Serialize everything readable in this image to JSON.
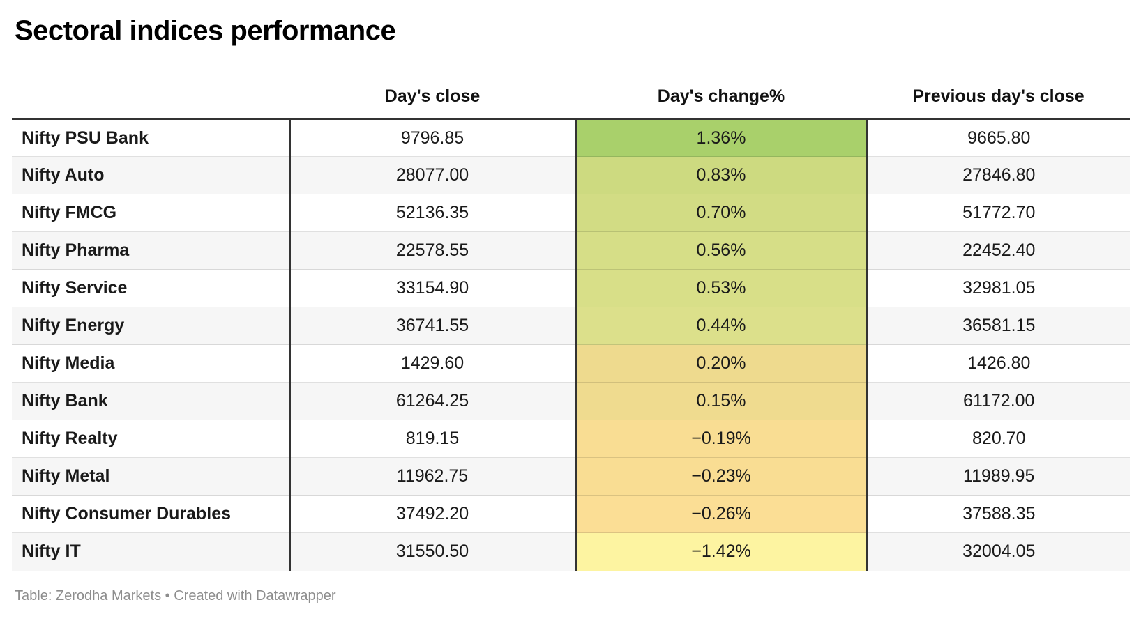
{
  "title": "Sectoral indices performance",
  "footer": "Table: Zerodha Markets • Created with Datawrapper",
  "colors": {
    "table_border": "#333333",
    "row_stripe": "#f6f6f6",
    "footer_text": "#8d8d8d",
    "max_positive_green": "#a9d06b",
    "min_negative_yellow": "#fdf4a1"
  },
  "chart_data": {
    "type": "table",
    "title": "Sectoral indices performance",
    "columns": [
      "",
      "Day's close",
      "Day's change%",
      "Previous day's close"
    ],
    "legend_note": "Day's change% cells are shaded on a green-to-yellow scale from highest to lowest change",
    "rows": [
      {
        "label": "Nifty PSU Bank",
        "close": "9796.85",
        "change": "1.36%",
        "change_value": 1.36,
        "change_color": "#a9d06b",
        "prev": "9665.80"
      },
      {
        "label": "Nifty Auto",
        "close": "28077.00",
        "change": "0.83%",
        "change_value": 0.83,
        "change_color": "#cdda80",
        "prev": "27846.80"
      },
      {
        "label": "Nifty FMCG",
        "close": "52136.35",
        "change": "0.70%",
        "change_value": 0.7,
        "change_color": "#d2dc84",
        "prev": "51772.70"
      },
      {
        "label": "Nifty Pharma",
        "close": "22578.55",
        "change": "0.56%",
        "change_value": 0.56,
        "change_color": "#d6de87",
        "prev": "22452.40"
      },
      {
        "label": "Nifty Service",
        "close": "33154.90",
        "change": "0.53%",
        "change_value": 0.53,
        "change_color": "#d8df88",
        "prev": "32981.05"
      },
      {
        "label": "Nifty Energy",
        "close": "36741.55",
        "change": "0.44%",
        "change_value": 0.44,
        "change_color": "#dce08b",
        "prev": "36581.15"
      },
      {
        "label": "Nifty Media",
        "close": "1429.60",
        "change": "0.20%",
        "change_value": 0.2,
        "change_color": "#eeda8e",
        "prev": "1426.80"
      },
      {
        "label": "Nifty Bank",
        "close": "61264.25",
        "change": "0.15%",
        "change_value": 0.15,
        "change_color": "#efdb8f",
        "prev": "61172.00"
      },
      {
        "label": "Nifty Realty",
        "close": "819.15",
        "change": "−0.19%",
        "change_value": -0.19,
        "change_color": "#f9dd93",
        "prev": "820.70"
      },
      {
        "label": "Nifty Metal",
        "close": "11962.75",
        "change": "−0.23%",
        "change_value": -0.23,
        "change_color": "#f9dd93",
        "prev": "11989.95"
      },
      {
        "label": "Nifty Consumer Durables",
        "close": "37492.20",
        "change": "−0.26%",
        "change_value": -0.26,
        "change_color": "#fbde95",
        "prev": "37588.35"
      },
      {
        "label": "Nifty IT",
        "close": "31550.50",
        "change": "−1.42%",
        "change_value": -1.42,
        "change_color": "#fdf4a1",
        "prev": "32004.05"
      }
    ]
  }
}
